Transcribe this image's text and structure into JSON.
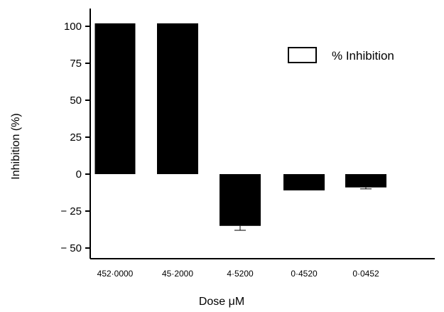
{
  "chart_data": {
    "type": "bar",
    "categories": [
      "452·0000",
      "45·2000",
      "4·5200",
      "0·4520",
      "0·0452"
    ],
    "series": [
      {
        "name": "% Inhibition",
        "values": [
          102,
          102,
          -35,
          -11,
          -9
        ]
      }
    ],
    "error_bars": [
      0,
      0,
      3,
      0,
      1
    ],
    "xlabel": "Dose μM",
    "ylabel": "Inhibition (%)",
    "ylim": [
      -55,
      110
    ],
    "yticks": [
      100,
      75,
      50,
      25,
      0,
      -25,
      -50
    ],
    "ytick_labels": [
      "100",
      "75",
      "50",
      "25",
      "0",
      "− 25",
      "− 50"
    ],
    "legend": "top-right",
    "grid": false,
    "bar_color": "#000000"
  }
}
